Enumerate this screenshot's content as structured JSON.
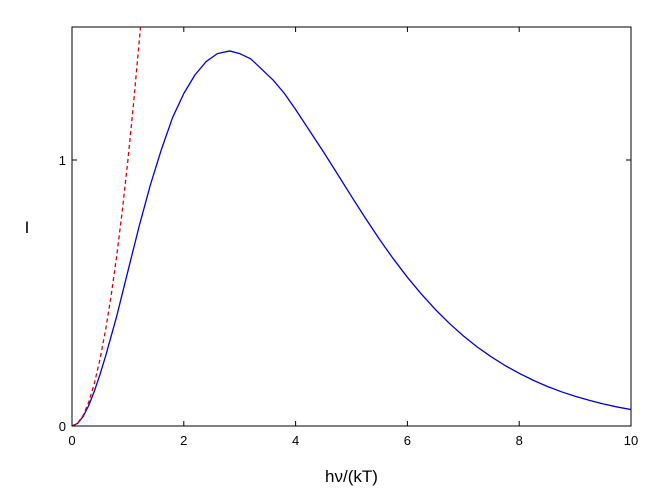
{
  "chart_data": {
    "type": "line",
    "title": "",
    "xlabel": "hν/(kT)",
    "ylabel": "I",
    "xlim": [
      0,
      10
    ],
    "ylim": [
      0,
      1.5
    ],
    "xticks": [
      0,
      2,
      4,
      6,
      8,
      10
    ],
    "yticks": [
      0,
      1
    ],
    "grid": false,
    "legend": "none",
    "series": [
      {
        "style": "solid",
        "color": "#0000dd",
        "x": [
          0,
          0.1,
          0.2,
          0.3,
          0.4,
          0.5,
          0.6,
          0.8,
          1.0,
          1.2,
          1.4,
          1.6,
          1.8,
          2.0,
          2.2,
          2.4,
          2.6,
          2.82,
          3.0,
          3.2,
          3.4,
          3.6,
          3.8,
          4.0,
          4.25,
          4.5,
          4.75,
          5.0,
          5.25,
          5.5,
          5.75,
          6.0,
          6.25,
          6.5,
          6.75,
          7.0,
          7.25,
          7.5,
          7.75,
          8.0,
          8.25,
          8.5,
          8.75,
          9.0,
          9.25,
          9.5,
          9.75,
          10.0
        ],
        "y": [
          0,
          0.0095,
          0.036,
          0.0775,
          0.131,
          0.193,
          0.262,
          0.413,
          0.582,
          0.75,
          0.905,
          1.04,
          1.16,
          1.25,
          1.32,
          1.37,
          1.4,
          1.41,
          1.4,
          1.38,
          1.34,
          1.3,
          1.25,
          1.19,
          1.11,
          1.03,
          0.947,
          0.863,
          0.781,
          0.702,
          0.628,
          0.559,
          0.496,
          0.438,
          0.386,
          0.339,
          0.297,
          0.26,
          0.227,
          0.198,
          0.172,
          0.149,
          0.129,
          0.112,
          0.0966,
          0.0833,
          0.0717,
          0.0617
        ]
      },
      {
        "style": "dashed",
        "color": "#dd0000",
        "x": [
          0,
          0.1,
          0.2,
          0.3,
          0.4,
          0.5,
          0.6,
          0.7,
          0.8,
          0.9,
          1.0,
          1.1,
          1.2,
          1.225
        ],
        "y": [
          0,
          0.01,
          0.04,
          0.09,
          0.16,
          0.25,
          0.36,
          0.49,
          0.64,
          0.81,
          1.0,
          1.21,
          1.44,
          1.5
        ]
      }
    ]
  }
}
